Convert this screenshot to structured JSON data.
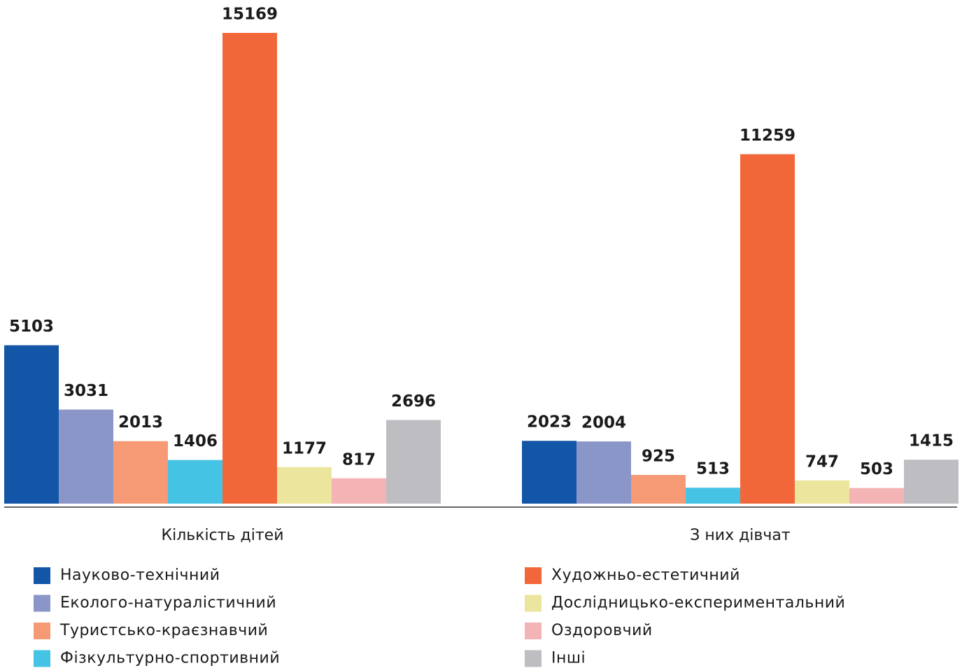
{
  "chart_data": {
    "type": "bar",
    "categories": [
      "Кількість дітей",
      "З них дівчат"
    ],
    "series": [
      {
        "name": "Науково-технічний",
        "color": "#1356a8",
        "values": [
          5103,
          2023
        ]
      },
      {
        "name": "Еколого-натуралістичний",
        "color": "#8a96c8",
        "values": [
          3031,
          2004
        ]
      },
      {
        "name": "Туристсько-краєзнавчий",
        "color": "#f59a74",
        "values": [
          2013,
          925
        ]
      },
      {
        "name": "Фізкультурно-спортивний",
        "color": "#45c3e4",
        "values": [
          1406,
          513
        ]
      },
      {
        "name": "Художньо-естетичний",
        "color": "#f26739",
        "values": [
          15169,
          11259
        ]
      },
      {
        "name": "Дослідницько-експериментальний",
        "color": "#ece59d",
        "values": [
          1177,
          747
        ]
      },
      {
        "name": "Оздоровчий",
        "color": "#f4b3b5",
        "values": [
          817,
          503
        ]
      },
      {
        "name": "Інші",
        "color": "#bebec2",
        "values": [
          2696,
          1415
        ]
      }
    ]
  }
}
